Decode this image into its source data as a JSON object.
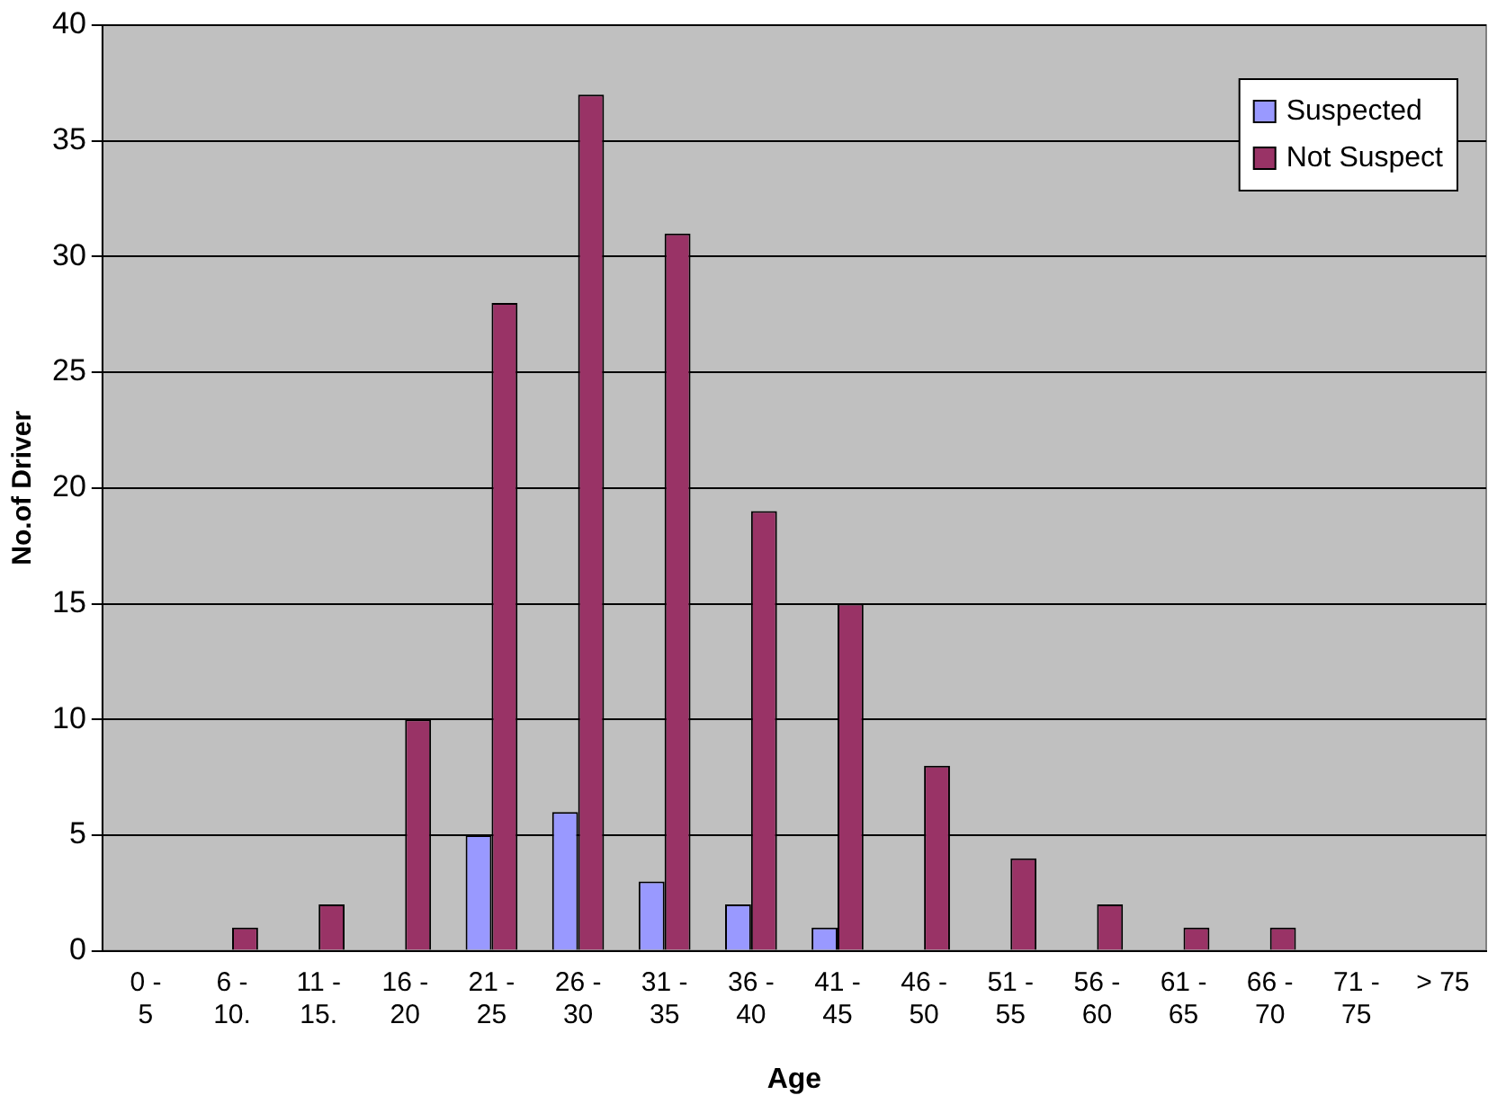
{
  "chart_data": {
    "type": "bar",
    "xlabel": "Age",
    "ylabel": "No.of Driver",
    "categories": [
      "0 - 5",
      "6 - 10.",
      "11 - 15.",
      "16 - 20",
      "21 - 25",
      "26 - 30",
      "31 - 35",
      "36 - 40",
      "41 - 45",
      "46 - 50",
      "51 - 55",
      "56 - 60",
      "61 - 65",
      "66 - 70",
      "71 - 75",
      "> 75"
    ],
    "series": [
      {
        "name": "Suspected",
        "color": "#9999ff",
        "values": [
          0,
          0,
          0,
          0,
          5,
          6,
          3,
          2,
          1,
          0,
          0,
          0,
          0,
          0,
          0,
          0
        ]
      },
      {
        "name": "Not Suspect",
        "color": "#993366",
        "values": [
          0,
          1,
          2,
          10,
          28,
          37,
          31,
          19,
          15,
          8,
          4,
          2,
          1,
          1,
          0,
          0
        ]
      }
    ],
    "ylim": [
      0,
      40
    ],
    "yticks": [
      0,
      5,
      10,
      15,
      20,
      25,
      30,
      35,
      40
    ],
    "grid": "y",
    "legend": "top right"
  }
}
